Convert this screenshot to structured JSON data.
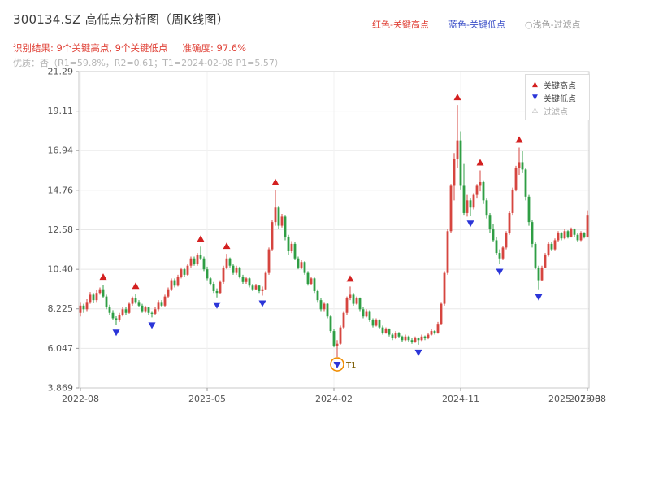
{
  "header": {
    "title": "300134.SZ 高低点分析图（周K线图）",
    "legend_items": [
      {
        "text": "红色-关键高点",
        "color": "#e0443a"
      },
      {
        "text": "蓝色-关键低点",
        "color": "#3c50c8"
      },
      {
        "text": "○浅色-过滤点",
        "color": "#9a9a9a"
      }
    ],
    "result_text": "识别结果: 9个关键高点, 9个关键低点",
    "accuracy_text": "准确度: 97.6%",
    "quality_text": "优质：否（R1=59.8%，R2=0.61；T1=2024-02-08 P1=5.57）"
  },
  "colors": {
    "up": "#d6453f",
    "down": "#2f9e44",
    "high_marker": "#d32020",
    "low_marker": "#2b35d8",
    "filtered": "#f08c00",
    "filtered_label": "#7a5b00",
    "grid": "#e8e8e8",
    "vgrid": "#f1f1f1",
    "axis": "#c9c9c9",
    "tick_text": "#555555",
    "red_text": "#e0443a",
    "blue_text": "#3c50c8",
    "gray_text": "#9a9a9a",
    "light_gray_text": "#b5b5b5"
  },
  "chart_data": {
    "type": "candlestick",
    "title": "300134.SZ 高低点分析图（周K线图）",
    "xlabel": "",
    "ylabel": "",
    "grid": true,
    "y_range": [
      3.869,
      21.29
    ],
    "y_ticks": [
      "21.29",
      "19.11",
      "16.94",
      "14.76",
      "12.58",
      "10.40",
      "8.225",
      "6.047",
      "3.869"
    ],
    "x_ticks": [
      {
        "label": "2022-08",
        "index": 0
      },
      {
        "label": "2023-05",
        "index": 39
      },
      {
        "label": "2024-02",
        "index": 78
      },
      {
        "label": "2024-11",
        "index": 117
      },
      {
        "label": "2025-08",
        "index": 156
      }
    ],
    "end_label": {
      "label": "2025-07-08",
      "index": 152
    },
    "plot_legend": [
      {
        "label": "关键高点",
        "marker": "up-triangle"
      },
      {
        "label": "关键低点",
        "marker": "down-triangle"
      },
      {
        "label": "过滤点",
        "marker": "open-up-triangle"
      }
    ],
    "key_highs": [
      {
        "index": 7,
        "price": 9.55
      },
      {
        "index": 17,
        "price": 9.05
      },
      {
        "index": 37,
        "price": 11.65
      },
      {
        "index": 45,
        "price": 11.25
      },
      {
        "index": 60,
        "price": 14.76
      },
      {
        "index": 83,
        "price": 9.45
      },
      {
        "index": 116,
        "price": 19.45
      },
      {
        "index": 123,
        "price": 15.85
      },
      {
        "index": 135,
        "price": 17.1
      }
    ],
    "key_lows": [
      {
        "index": 11,
        "price": 7.35
      },
      {
        "index": 22,
        "price": 7.75
      },
      {
        "index": 42,
        "price": 8.85
      },
      {
        "index": 56,
        "price": 8.95
      },
      {
        "index": 79,
        "price": 5.57
      },
      {
        "index": 104,
        "price": 6.25
      },
      {
        "index": 120,
        "price": 13.35
      },
      {
        "index": 129,
        "price": 10.7
      },
      {
        "index": 141,
        "price": 9.3
      }
    ],
    "filtered_points": [
      {
        "index": 79,
        "price": 5.57,
        "label": "T1"
      }
    ],
    "candles": [
      [
        8.0,
        8.6,
        7.8,
        8.4
      ],
      [
        8.4,
        8.5,
        8.0,
        8.2
      ],
      [
        8.2,
        8.75,
        8.1,
        8.6
      ],
      [
        8.6,
        9.15,
        8.5,
        9.0
      ],
      [
        9.0,
        9.1,
        8.55,
        8.7
      ],
      [
        8.7,
        9.25,
        8.6,
        9.1
      ],
      [
        9.1,
        9.4,
        9.0,
        9.3
      ],
      [
        9.3,
        9.55,
        8.8,
        8.9
      ],
      [
        8.9,
        9.0,
        8.2,
        8.3
      ],
      [
        8.3,
        8.45,
        7.9,
        8.0
      ],
      [
        8.0,
        8.15,
        7.6,
        7.7
      ],
      [
        7.7,
        7.85,
        7.35,
        7.6
      ],
      [
        7.6,
        8.0,
        7.5,
        7.9
      ],
      [
        7.9,
        8.3,
        7.8,
        8.2
      ],
      [
        8.2,
        8.3,
        7.9,
        8.0
      ],
      [
        8.0,
        8.6,
        7.95,
        8.5
      ],
      [
        8.5,
        8.9,
        8.4,
        8.8
      ],
      [
        8.8,
        9.05,
        8.5,
        8.6
      ],
      [
        8.6,
        8.7,
        8.3,
        8.4
      ],
      [
        8.4,
        8.5,
        8.0,
        8.1
      ],
      [
        8.1,
        8.4,
        8.0,
        8.3
      ],
      [
        8.3,
        8.35,
        7.9,
        8.0
      ],
      [
        8.0,
        8.1,
        7.75,
        7.95
      ],
      [
        7.95,
        8.3,
        7.9,
        8.2
      ],
      [
        8.2,
        8.7,
        8.1,
        8.6
      ],
      [
        8.6,
        8.7,
        8.3,
        8.4
      ],
      [
        8.4,
        9.0,
        8.35,
        8.9
      ],
      [
        8.9,
        9.4,
        8.8,
        9.3
      ],
      [
        9.3,
        9.9,
        9.2,
        9.8
      ],
      [
        9.8,
        9.9,
        9.4,
        9.5
      ],
      [
        9.5,
        10.1,
        9.45,
        10.0
      ],
      [
        10.0,
        10.5,
        9.9,
        10.4
      ],
      [
        10.4,
        10.5,
        10.0,
        10.1
      ],
      [
        10.1,
        10.7,
        10.05,
        10.6
      ],
      [
        10.6,
        11.1,
        10.5,
        11.0
      ],
      [
        11.0,
        11.1,
        10.6,
        10.7
      ],
      [
        10.7,
        11.3,
        10.6,
        11.2
      ],
      [
        11.2,
        11.65,
        10.9,
        11.0
      ],
      [
        11.0,
        11.1,
        10.3,
        10.4
      ],
      [
        10.4,
        10.55,
        9.8,
        9.9
      ],
      [
        9.9,
        10.0,
        9.5,
        9.6
      ],
      [
        9.6,
        9.7,
        9.1,
        9.2
      ],
      [
        9.2,
        9.35,
        8.85,
        9.1
      ],
      [
        9.1,
        9.8,
        9.05,
        9.7
      ],
      [
        9.7,
        10.6,
        9.6,
        10.5
      ],
      [
        10.5,
        11.25,
        10.4,
        11.0
      ],
      [
        11.0,
        11.05,
        10.5,
        10.6
      ],
      [
        10.6,
        10.7,
        10.1,
        10.2
      ],
      [
        10.2,
        10.6,
        10.1,
        10.5
      ],
      [
        10.5,
        10.55,
        9.9,
        10.0
      ],
      [
        10.0,
        10.1,
        9.6,
        9.7
      ],
      [
        9.7,
        10.0,
        9.6,
        9.9
      ],
      [
        9.9,
        9.95,
        9.4,
        9.5
      ],
      [
        9.5,
        9.6,
        9.2,
        9.3
      ],
      [
        9.3,
        9.6,
        9.25,
        9.5
      ],
      [
        9.5,
        9.55,
        9.1,
        9.2
      ],
      [
        9.2,
        9.45,
        8.95,
        9.3
      ],
      [
        9.3,
        10.3,
        9.25,
        10.2
      ],
      [
        10.2,
        11.6,
        10.1,
        11.5
      ],
      [
        11.5,
        13.1,
        11.4,
        13.0
      ],
      [
        13.0,
        14.76,
        12.8,
        13.8
      ],
      [
        13.8,
        13.9,
        12.6,
        12.8
      ],
      [
        12.8,
        13.45,
        12.7,
        13.3
      ],
      [
        13.3,
        13.4,
        12.0,
        12.2
      ],
      [
        12.2,
        12.3,
        11.2,
        11.4
      ],
      [
        11.4,
        11.95,
        11.3,
        11.8
      ],
      [
        11.8,
        11.9,
        10.9,
        11.0
      ],
      [
        11.0,
        11.1,
        10.4,
        10.5
      ],
      [
        10.5,
        10.9,
        10.4,
        10.8
      ],
      [
        10.8,
        10.85,
        10.1,
        10.2
      ],
      [
        10.2,
        10.3,
        9.5,
        9.6
      ],
      [
        9.6,
        10.0,
        9.55,
        9.9
      ],
      [
        9.9,
        9.95,
        9.1,
        9.2
      ],
      [
        9.2,
        9.3,
        8.6,
        8.7
      ],
      [
        8.7,
        8.8,
        8.1,
        8.2
      ],
      [
        8.2,
        8.6,
        8.1,
        8.5
      ],
      [
        8.5,
        8.55,
        7.7,
        7.8
      ],
      [
        7.8,
        7.9,
        6.9,
        7.0
      ],
      [
        7.0,
        7.1,
        6.1,
        6.2
      ],
      [
        6.2,
        6.5,
        5.57,
        6.3
      ],
      [
        6.3,
        7.3,
        6.25,
        7.2
      ],
      [
        7.2,
        8.1,
        7.1,
        8.0
      ],
      [
        8.0,
        8.9,
        7.9,
        8.8
      ],
      [
        8.8,
        9.45,
        8.7,
        9.0
      ],
      [
        9.0,
        9.1,
        8.4,
        8.5
      ],
      [
        8.5,
        8.9,
        8.45,
        8.8
      ],
      [
        8.8,
        8.85,
        8.1,
        8.2
      ],
      [
        8.2,
        8.3,
        7.7,
        7.8
      ],
      [
        7.8,
        8.2,
        7.75,
        8.1
      ],
      [
        8.1,
        8.15,
        7.5,
        7.6
      ],
      [
        7.6,
        7.7,
        7.2,
        7.3
      ],
      [
        7.3,
        7.7,
        7.25,
        7.6
      ],
      [
        7.6,
        7.65,
        7.1,
        7.2
      ],
      [
        7.2,
        7.3,
        6.8,
        6.9
      ],
      [
        6.9,
        7.2,
        6.85,
        7.1
      ],
      [
        7.1,
        7.15,
        6.7,
        6.8
      ],
      [
        6.8,
        6.9,
        6.5,
        6.6
      ],
      [
        6.6,
        7.0,
        6.55,
        6.9
      ],
      [
        6.9,
        6.95,
        6.6,
        6.7
      ],
      [
        6.7,
        6.75,
        6.4,
        6.5
      ],
      [
        6.5,
        6.8,
        6.45,
        6.7
      ],
      [
        6.7,
        6.75,
        6.4,
        6.5
      ],
      [
        6.5,
        6.6,
        6.3,
        6.4
      ],
      [
        6.4,
        6.7,
        6.35,
        6.6
      ],
      [
        6.6,
        6.65,
        6.25,
        6.5
      ],
      [
        6.5,
        6.8,
        6.45,
        6.7
      ],
      [
        6.7,
        6.75,
        6.5,
        6.6
      ],
      [
        6.6,
        6.9,
        6.55,
        6.8
      ],
      [
        6.8,
        7.1,
        6.75,
        7.0
      ],
      [
        7.0,
        7.05,
        6.8,
        6.9
      ],
      [
        6.9,
        7.5,
        6.85,
        7.4
      ],
      [
        7.4,
        8.6,
        7.35,
        8.5
      ],
      [
        8.5,
        10.3,
        8.4,
        10.2
      ],
      [
        10.2,
        12.6,
        10.1,
        12.5
      ],
      [
        12.5,
        15.1,
        12.4,
        15.0
      ],
      [
        15.0,
        16.8,
        14.2,
        16.5
      ],
      [
        16.5,
        19.45,
        16.0,
        17.5
      ],
      [
        17.5,
        18.0,
        14.8,
        15.0
      ],
      [
        15.0,
        16.2,
        13.4,
        13.5
      ],
      [
        13.5,
        14.5,
        13.3,
        14.2
      ],
      [
        14.2,
        14.3,
        13.35,
        13.8
      ],
      [
        13.8,
        14.6,
        13.7,
        14.5
      ],
      [
        14.5,
        15.1,
        14.3,
        15.0
      ],
      [
        15.0,
        15.85,
        14.7,
        15.2
      ],
      [
        15.2,
        15.3,
        14.0,
        14.2
      ],
      [
        14.2,
        14.3,
        13.2,
        13.4
      ],
      [
        13.4,
        13.5,
        12.4,
        12.6
      ],
      [
        12.6,
        12.9,
        11.9,
        12.0
      ],
      [
        12.0,
        12.2,
        11.2,
        11.3
      ],
      [
        11.3,
        11.5,
        10.7,
        11.0
      ],
      [
        11.0,
        11.7,
        10.9,
        11.6
      ],
      [
        11.6,
        12.5,
        11.5,
        12.4
      ],
      [
        12.4,
        13.6,
        12.3,
        13.5
      ],
      [
        13.5,
        14.9,
        13.4,
        14.8
      ],
      [
        14.8,
        16.1,
        14.7,
        16.0
      ],
      [
        16.0,
        17.1,
        15.6,
        16.3
      ],
      [
        16.3,
        16.9,
        15.7,
        15.9
      ],
      [
        15.9,
        16.0,
        14.2,
        14.4
      ],
      [
        14.4,
        14.5,
        12.8,
        13.0
      ],
      [
        13.0,
        13.1,
        11.6,
        11.8
      ],
      [
        11.8,
        11.9,
        10.4,
        10.5
      ],
      [
        10.5,
        10.6,
        9.3,
        9.8
      ],
      [
        9.8,
        10.6,
        9.75,
        10.5
      ],
      [
        10.5,
        11.3,
        10.45,
        11.2
      ],
      [
        11.2,
        11.9,
        11.1,
        11.8
      ],
      [
        11.8,
        11.9,
        11.4,
        11.5
      ],
      [
        11.5,
        12.1,
        11.45,
        12.0
      ],
      [
        12.0,
        12.5,
        11.9,
        12.4
      ],
      [
        12.4,
        12.45,
        12.0,
        12.1
      ],
      [
        12.1,
        12.6,
        12.05,
        12.5
      ],
      [
        12.5,
        12.55,
        12.1,
        12.2
      ],
      [
        12.2,
        12.7,
        12.15,
        12.6
      ],
      [
        12.6,
        12.65,
        12.2,
        12.3
      ],
      [
        12.3,
        12.4,
        11.9,
        12.0
      ],
      [
        12.0,
        12.5,
        11.95,
        12.4
      ],
      [
        12.4,
        12.45,
        12.1,
        12.2
      ],
      [
        12.2,
        13.65,
        12.15,
        13.4
      ]
    ]
  }
}
